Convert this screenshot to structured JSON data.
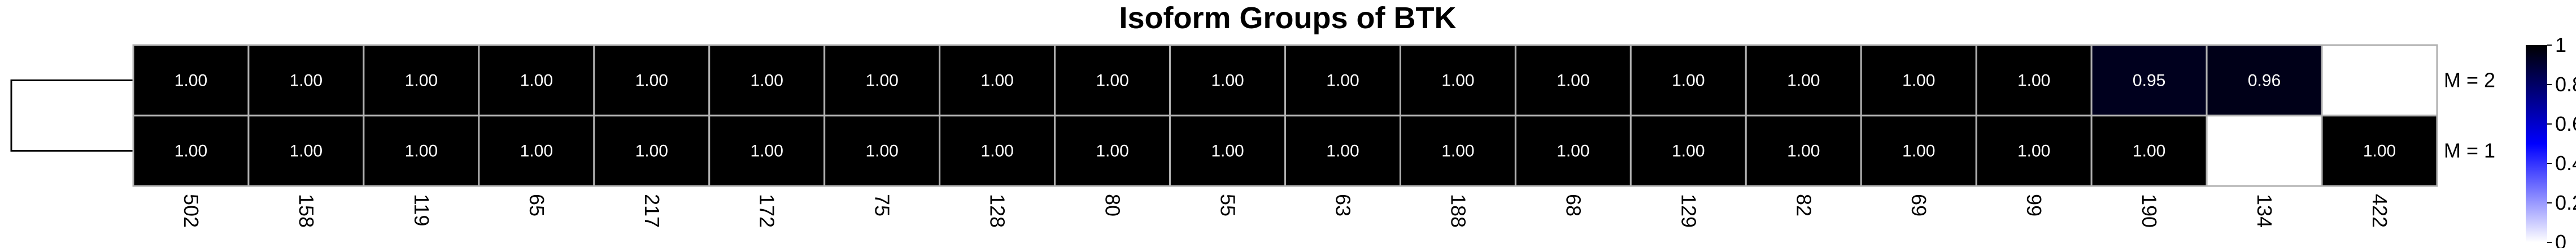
{
  "chart_data": {
    "type": "heatmap",
    "title": "Isoform Groups of BTK",
    "columns": [
      "502",
      "158",
      "119",
      "65",
      "217",
      "172",
      "75",
      "128",
      "80",
      "55",
      "63",
      "188",
      "68",
      "129",
      "82",
      "69",
      "99",
      "190",
      "134",
      "422"
    ],
    "rows": [
      "M = 2",
      "M = 1"
    ],
    "values": [
      [
        1.0,
        1.0,
        1.0,
        1.0,
        1.0,
        1.0,
        1.0,
        1.0,
        1.0,
        1.0,
        1.0,
        1.0,
        1.0,
        1.0,
        1.0,
        1.0,
        1.0,
        0.95,
        0.96,
        null
      ],
      [
        1.0,
        1.0,
        1.0,
        1.0,
        1.0,
        1.0,
        1.0,
        1.0,
        1.0,
        1.0,
        1.0,
        1.0,
        1.0,
        1.0,
        1.0,
        1.0,
        1.0,
        1.0,
        null,
        1.0
      ]
    ],
    "cell_labels": [
      [
        "1.00",
        "1.00",
        "1.00",
        "1.00",
        "1.00",
        "1.00",
        "1.00",
        "1.00",
        "1.00",
        "1.00",
        "1.00",
        "1.00",
        "1.00",
        "1.00",
        "1.00",
        "1.00",
        "1.00",
        "0.95",
        "0.96",
        ""
      ],
      [
        "1.00",
        "1.00",
        "1.00",
        "1.00",
        "1.00",
        "1.00",
        "1.00",
        "1.00",
        "1.00",
        "1.00",
        "1.00",
        "1.00",
        "1.00",
        "1.00",
        "1.00",
        "1.00",
        "1.00",
        "1.00",
        "",
        "1.00"
      ]
    ],
    "colorbar": {
      "ticks": [
        "1",
        "0.8",
        "0.6",
        "0.4",
        "0.2",
        "0"
      ],
      "range": [
        0,
        1
      ],
      "colors": [
        "#ffffff",
        "#0000ff",
        "#000000"
      ]
    },
    "grid_color": "#b0b0b0",
    "dendrogram": "rows",
    "legend": "right"
  }
}
